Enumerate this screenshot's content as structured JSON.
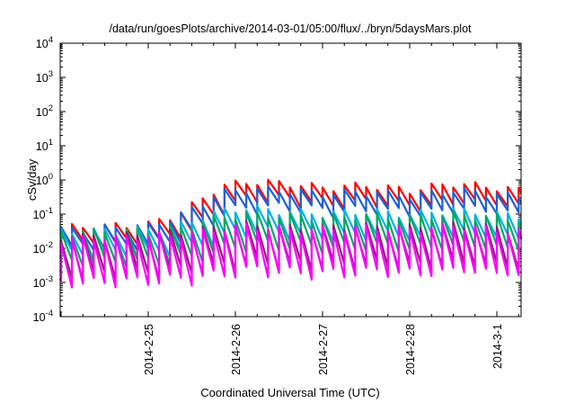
{
  "chart_data": {
    "type": "line",
    "title": "/data/run/goesPlots/archive/2014-03-01/05:00/flux/../bryn/5daysMars.plot",
    "xlabel": "Coordinated Universal Time (UTC)",
    "ylabel": "cSv/day",
    "y_scale": "log",
    "ylim": [
      0.0001,
      10000
    ],
    "yticks": [
      {
        "base": "10",
        "exp": "-4",
        "value": 0.0001
      },
      {
        "base": "10",
        "exp": "-3",
        "value": 0.001
      },
      {
        "base": "10",
        "exp": "-2",
        "value": 0.01
      },
      {
        "base": "10",
        "exp": "-1",
        "value": 0.1
      },
      {
        "base": "10",
        "exp": "0",
        "value": 1
      },
      {
        "base": "10",
        "exp": "1",
        "value": 10
      },
      {
        "base": "10",
        "exp": "2",
        "value": 100
      },
      {
        "base": "10",
        "exp": "3",
        "value": 1000
      },
      {
        "base": "10",
        "exp": "4",
        "value": 10000
      }
    ],
    "xlim": [
      "2014-02-24 00:00",
      "2014-03-01 06:00"
    ],
    "xticks": [
      {
        "label": "2014-2-25",
        "day": 1
      },
      {
        "label": "2014-2-26",
        "day": 2
      },
      {
        "label": "2014-2-27",
        "day": 3
      },
      {
        "label": "2014-2-28",
        "day": 4
      },
      {
        "label": "2014-3-1",
        "day": 5
      }
    ],
    "grid": false,
    "legend": "none",
    "sawtooth_period_hours": 3,
    "series": [
      {
        "color": "#ff0000",
        "envelope": [
          [
            0,
            0.04
          ],
          [
            1,
            0.05
          ],
          [
            1.4,
            0.12
          ],
          [
            1.8,
            0.6
          ],
          [
            2.1,
            0.9
          ],
          [
            2.6,
            0.8
          ],
          [
            3.0,
            0.6
          ],
          [
            3.5,
            0.7
          ],
          [
            4.0,
            0.5
          ],
          [
            4.5,
            0.8
          ],
          [
            5.0,
            0.6
          ],
          [
            5.25,
            0.5
          ]
        ]
      },
      {
        "color": "#1f5fd6",
        "envelope": [
          [
            0,
            0.035
          ],
          [
            1,
            0.045
          ],
          [
            1.4,
            0.1
          ],
          [
            1.8,
            0.4
          ],
          [
            2.1,
            0.55
          ],
          [
            2.6,
            0.5
          ],
          [
            3.0,
            0.4
          ],
          [
            3.5,
            0.45
          ],
          [
            4.0,
            0.35
          ],
          [
            4.5,
            0.5
          ],
          [
            5.0,
            0.4
          ],
          [
            5.25,
            0.3
          ]
        ]
      },
      {
        "color": "#00b0e0",
        "envelope": [
          [
            0,
            0.03
          ],
          [
            1,
            0.035
          ],
          [
            1.4,
            0.05
          ],
          [
            1.8,
            0.12
          ],
          [
            2.1,
            0.15
          ],
          [
            2.6,
            0.12
          ],
          [
            3.0,
            0.1
          ],
          [
            3.5,
            0.12
          ],
          [
            4.0,
            0.1
          ],
          [
            4.5,
            0.13
          ],
          [
            5.0,
            0.1
          ],
          [
            5.25,
            0.09
          ]
        ]
      },
      {
        "color": "#00a868",
        "envelope": [
          [
            0,
            0.03
          ],
          [
            1,
            0.032
          ],
          [
            1.4,
            0.04
          ],
          [
            1.8,
            0.08
          ],
          [
            2.1,
            0.1
          ],
          [
            2.6,
            0.09
          ],
          [
            3.0,
            0.08
          ],
          [
            3.5,
            0.09
          ],
          [
            4.0,
            0.08
          ],
          [
            4.5,
            0.1
          ],
          [
            5.0,
            0.08
          ],
          [
            5.25,
            0.07
          ]
        ]
      },
      {
        "color": "#8a1f6e",
        "envelope": [
          [
            0,
            0.02
          ],
          [
            1,
            0.025
          ],
          [
            1.4,
            0.03
          ],
          [
            1.8,
            0.04
          ],
          [
            2.1,
            0.05
          ],
          [
            2.6,
            0.04
          ],
          [
            3.0,
            0.04
          ],
          [
            3.5,
            0.045
          ],
          [
            4.0,
            0.04
          ],
          [
            4.5,
            0.05
          ],
          [
            5.0,
            0.04
          ],
          [
            5.25,
            0.035
          ]
        ]
      },
      {
        "color": "#ff00ff",
        "envelope": [
          [
            0,
            0.018
          ],
          [
            1,
            0.022
          ],
          [
            1.4,
            0.025
          ],
          [
            1.8,
            0.035
          ],
          [
            2.1,
            0.045
          ],
          [
            2.6,
            0.035
          ],
          [
            3.0,
            0.035
          ],
          [
            3.5,
            0.04
          ],
          [
            4.0,
            0.035
          ],
          [
            4.5,
            0.045
          ],
          [
            5.0,
            0.035
          ],
          [
            5.25,
            0.03
          ]
        ]
      }
    ],
    "drop_factor": [
      0.3,
      0.28,
      0.2,
      0.12,
      0.07,
      0.05
    ]
  }
}
